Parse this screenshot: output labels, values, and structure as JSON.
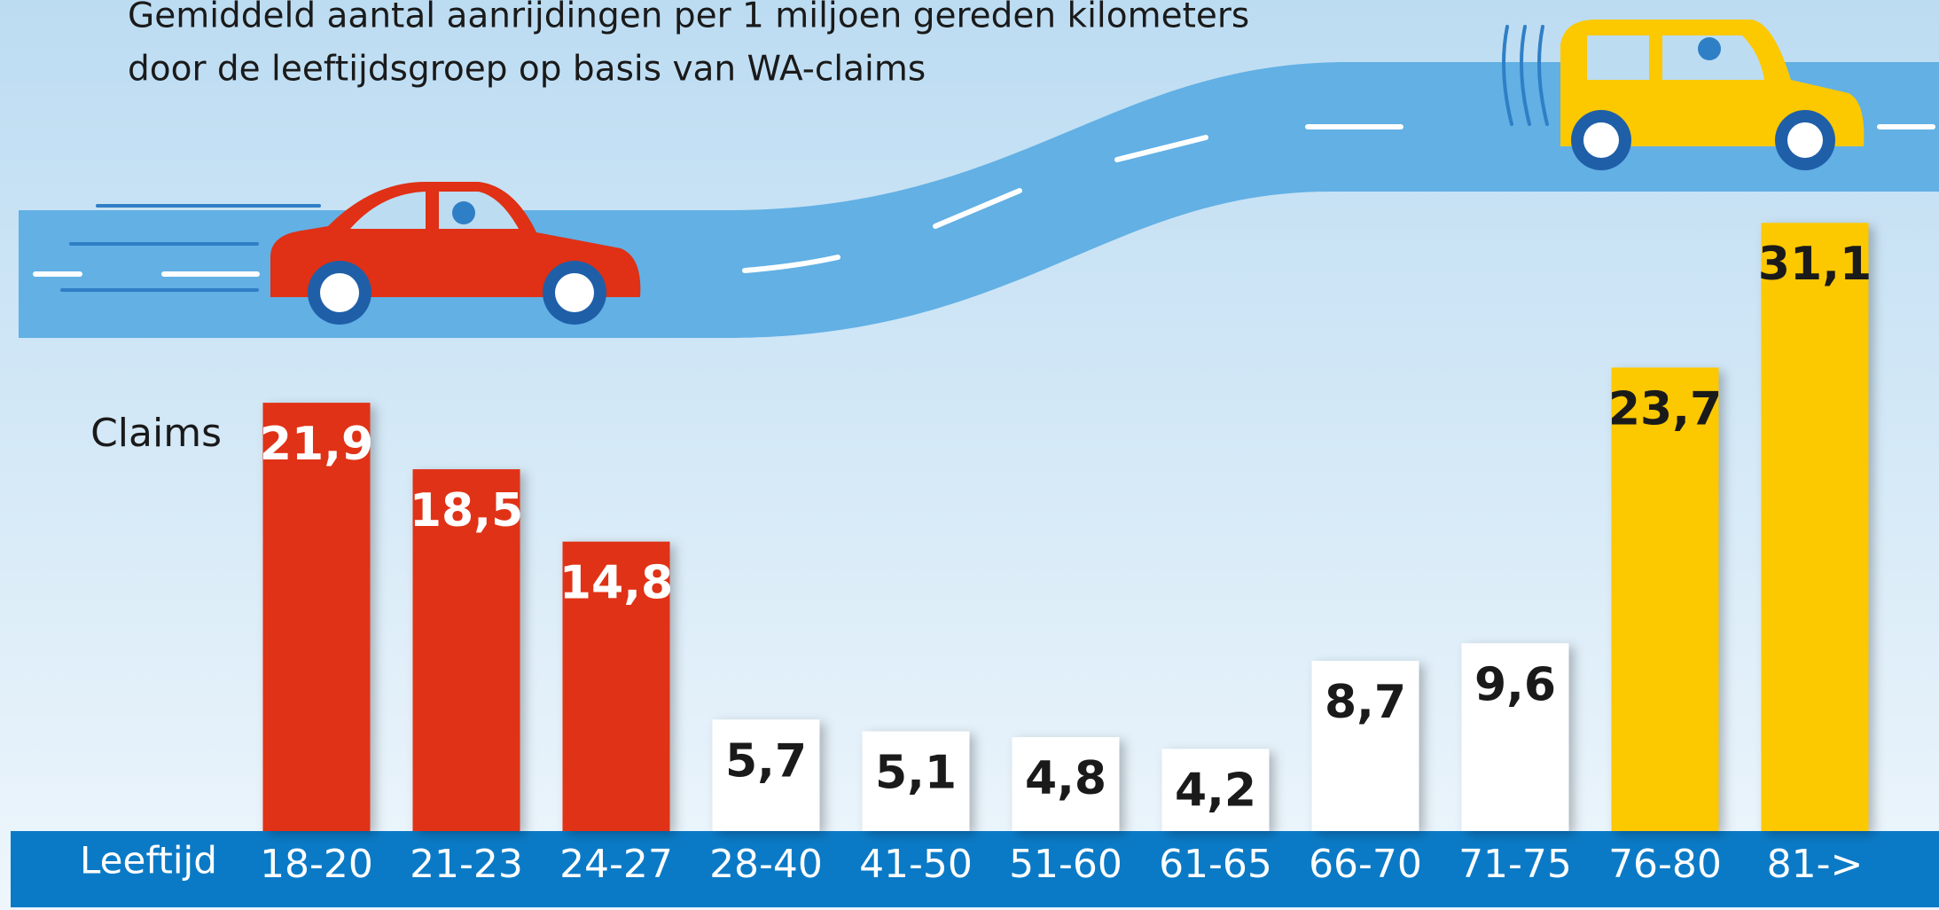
{
  "chart_data": {
    "type": "bar",
    "title": [
      "Gemiddeld aantal aanrijdingen per 1 miljoen gereden kilometers",
      "door de leeftijdsgroep op basis van WA-claims"
    ],
    "y_label": "Claims",
    "x_label": "Leeftijd",
    "categories": [
      "18-20",
      "21-23",
      "24-27",
      "28-40",
      "41-50",
      "51-60",
      "61-65",
      "66-70",
      "71-75",
      "76-80",
      "81->"
    ],
    "values": [
      21.9,
      18.5,
      14.8,
      5.7,
      5.1,
      4.8,
      4.2,
      8.7,
      9.6,
      23.7,
      31.1
    ],
    "value_labels": [
      "21,9",
      "18,5",
      "14,8",
      "5,7",
      "5,1",
      "4,8",
      "4,2",
      "8,7",
      "9,6",
      "23,7",
      "31,1"
    ],
    "colors": [
      "#e03015",
      "#e03015",
      "#e03015",
      "#ffffff",
      "#ffffff",
      "#ffffff",
      "#ffffff",
      "#ffffff",
      "#ffffff",
      "#fcc800",
      "#fcc800"
    ]
  }
}
